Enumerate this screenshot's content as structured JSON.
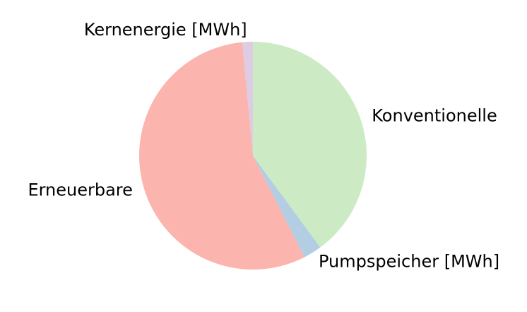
{
  "chart_data": {
    "type": "pie",
    "title": "",
    "start_angle_deg": 90,
    "direction": "counterclockwise",
    "slices": [
      {
        "label": "Kernenergie [MWh]",
        "value": 1.5,
        "color": "#decbe4"
      },
      {
        "label": "Erneuerbare",
        "value": 56.0,
        "color": "#fbb4ae"
      },
      {
        "label": "Pumpspeicher [MWh]",
        "value": 2.6,
        "color": "#b3cde3"
      },
      {
        "label": "Konventionelle",
        "value": 39.9,
        "color": "#ccebc5"
      }
    ]
  }
}
